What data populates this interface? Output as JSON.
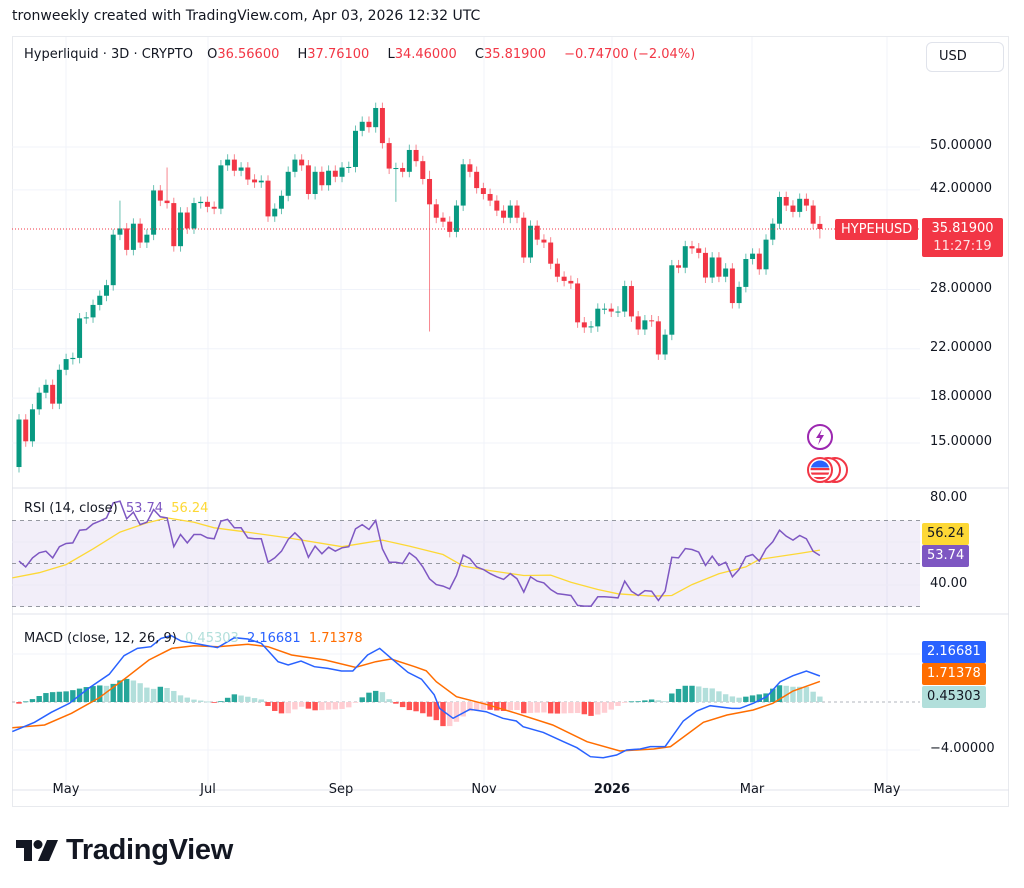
{
  "attribution": "tronweekly created with TradingView.com, Apr 03, 2026 12:32 UTC",
  "legend": {
    "symbol": "Hyperliquid · 3D · CRYPTO",
    "open_label": "O",
    "open": "36.56600",
    "high_label": "H",
    "high": "37.76100",
    "low_label": "L",
    "low": "34.46000",
    "close_label": "C",
    "close": "35.81900",
    "change": "−0.74700 (−2.04%)"
  },
  "currency_button": "USD",
  "symbol_tag": "HYPEHUSD",
  "last_price": "35.81900",
  "countdown": "11:27:19",
  "rsi_legend": {
    "title": "RSI (14, close)",
    "rsi": "53.74",
    "ma": "56.24"
  },
  "macd_legend": {
    "title": "MACD (close, 12, 26, 9)",
    "histogram": "0.45303",
    "macd": "2.16681",
    "signal": "1.71378"
  },
  "logo": "TradingView",
  "icons": {
    "event_1": "lightning-icon",
    "event_2": "us-flag-icon"
  },
  "colors": {
    "up": "#089981",
    "down": "#f23645",
    "rsi": "#7e57c2",
    "rsi_ma": "#fdd835",
    "macd": "#2962ff",
    "signal": "#ff6d00",
    "hist_up_strong": "#26a69a",
    "hist_up_weak": "#b2dfdb",
    "hist_down_strong": "#ff5252",
    "hist_down_weak": "#ffcdd2"
  },
  "chart_data": [
    {
      "type": "candlestick",
      "scale": "log",
      "grid": true,
      "x_ticks": [
        "May",
        "Jul",
        "Sep",
        "Nov",
        "2026",
        "Mar",
        "May"
      ],
      "y_ticks": [
        50,
        42,
        28,
        22,
        18,
        15
      ],
      "y_tick_labels": [
        "50.00000",
        "42.00000",
        "28.00000",
        "22.00000",
        "18.00000",
        "15.00000"
      ],
      "first_open": 13.6,
      "closes": [
        16.5,
        15.1,
        17.2,
        18.4,
        19.0,
        17.6,
        20.2,
        21.1,
        21.2,
        24.9,
        25.0,
        26.3,
        27.3,
        28.5,
        35.0,
        35.9,
        32.9,
        36.6,
        33.9,
        35.0,
        41.9,
        40.2,
        39.8,
        33.4,
        38.3,
        35.9,
        39.8,
        40.0,
        39.2,
        38.9,
        46.4,
        47.5,
        45.4,
        46.0,
        43.8,
        43.3,
        43.6,
        37.7,
        38.9,
        41.0,
        45.2,
        47.5,
        46.4,
        41.3,
        45.2,
        42.8,
        45.4,
        44.3,
        46.0,
        46.1,
        53.4,
        55.4,
        54.2,
        58.6,
        50.8,
        45.8,
        45.9,
        45.2,
        49.4,
        47.2,
        43.9,
        39.6,
        37.5,
        36.9,
        35.4,
        39.4,
        46.6,
        45.2,
        42.3,
        41.3,
        40.2,
        38.6,
        37.5,
        39.4,
        37.5,
        31.9,
        36.3,
        34.3,
        33.9,
        31.1,
        29.5,
        29.0,
        28.7,
        24.5,
        24.0,
        24.1,
        25.9,
        25.9,
        25.6,
        25.6,
        28.4,
        25.1,
        23.8,
        24.7,
        24.6,
        21.5,
        23.3,
        30.9,
        30.6,
        33.4,
        33.1,
        32.5,
        29.4,
        31.9,
        29.5,
        30.5,
        26.5,
        28.3,
        31.7,
        32.4,
        30.4,
        34.3,
        36.6,
        40.8,
        39.4,
        38.4,
        40.5,
        39.4,
        36.6,
        35.819
      ],
      "wick_extremes": [
        {
          "bar": 16,
          "high": 40.2
        },
        {
          "bar": 23,
          "high": 46.0
        },
        {
          "bar": 57,
          "low": 40.0
        },
        {
          "bar": 62,
          "high": 45.4,
          "low": 23.6
        },
        {
          "bar": 120,
          "open": 36.566,
          "high": 37.761,
          "low": 34.46
        }
      ],
      "last_price": 35.819
    },
    {
      "type": "line",
      "title": "RSI (14, close)",
      "y_ticks": [
        80,
        40
      ],
      "y_tick_labels": [
        "80.00",
        "40.00"
      ],
      "bands": {
        "upper": 70,
        "middle": 50,
        "lower": 30
      },
      "rsi": [
        51.1,
        48.4,
        52.6,
        55,
        55.7,
        52.6,
        57.8,
        59.3,
        59.6,
        65.5,
        65.8,
        68.4,
        69.7,
        71.2,
        78.2,
        79,
        70.8,
        73.9,
        68.1,
        69.2,
        75.1,
        71.7,
        71.2,
        57.8,
        63.5,
        59.6,
        63.5,
        63.5,
        61.9,
        61.5,
        69.7,
        70.5,
        66.6,
        66.6,
        61.9,
        61.5,
        61.5,
        50.6,
        52.6,
        55.7,
        61.2,
        64.3,
        61.2,
        52.9,
        58.1,
        54.5,
        57.6,
        55.7,
        57.3,
        57.8,
        66.1,
        68.1,
        65.8,
        70,
        56.8,
        50.6,
        50.6,
        50,
        55,
        52.6,
        48.4,
        42.9,
        40.2,
        39.5,
        38.2,
        44.4,
        53.9,
        52.3,
        48.4,
        47.2,
        45.3,
        43.8,
        42.6,
        45.3,
        42.9,
        36.7,
        43.8,
        41.8,
        41,
        37.9,
        36,
        35.6,
        35.1,
        30.5,
        30.2,
        30.2,
        34.5,
        34.5,
        34.3,
        34,
        41.8,
        37.1,
        35.1,
        37.4,
        37.1,
        32.8,
        37.1,
        52.9,
        52.6,
        57,
        56.5,
        55.3,
        49.1,
        53.4,
        49.1,
        50.6,
        43.8,
        47.2,
        53.1,
        54.2,
        51.1,
        56.8,
        60.1,
        65.5,
        62.7,
        60.9,
        63,
        61.5,
        55.7,
        53.74
      ],
      "rsi_ma": [
        [
          0,
          43.3
        ],
        [
          4,
          45.7
        ],
        [
          8,
          49.5
        ],
        [
          12,
          56.8
        ],
        [
          16,
          64.6
        ],
        [
          20,
          68.9
        ],
        [
          23,
          71.2
        ],
        [
          27,
          69.2
        ],
        [
          30,
          66.6
        ],
        [
          34,
          65
        ],
        [
          41,
          61.9
        ],
        [
          49,
          57.8
        ],
        [
          55,
          60.9
        ],
        [
          59,
          58.1
        ],
        [
          64,
          54.2
        ],
        [
          67,
          48.8
        ],
        [
          71,
          46.7
        ],
        [
          76,
          44.4
        ],
        [
          80,
          44.6
        ],
        [
          83,
          41.3
        ],
        [
          87,
          37.9
        ],
        [
          90,
          35.9
        ],
        [
          95,
          34.8
        ],
        [
          98,
          35.1
        ],
        [
          101,
          40.2
        ],
        [
          105,
          45.2
        ],
        [
          109,
          48.4
        ],
        [
          111,
          51.9
        ],
        [
          117,
          54.7
        ],
        [
          120,
          56.24
        ]
      ]
    },
    {
      "type": "line+histogram",
      "title": "MACD (close, 12, 26, 9)",
      "y_ticks": [
        -4
      ],
      "y_tick_labels": [
        "−4.00000"
      ],
      "macd": [
        [
          0,
          -2.47
        ],
        [
          3.3,
          -1.69
        ],
        [
          5.8,
          -0.86
        ],
        [
          8.5,
          -0.11
        ],
        [
          11.2,
          1.08
        ],
        [
          14.4,
          2.31
        ],
        [
          16.6,
          3.86
        ],
        [
          18.6,
          4.47
        ],
        [
          20.6,
          4.61
        ],
        [
          22.1,
          5.3
        ],
        [
          23.6,
          5.53
        ],
        [
          25.1,
          5.08
        ],
        [
          27,
          4.89
        ],
        [
          30.5,
          4.53
        ],
        [
          33,
          5.36
        ],
        [
          35,
          5.25
        ],
        [
          37,
          4.89
        ],
        [
          39.5,
          3.36
        ],
        [
          41,
          3.08
        ],
        [
          42.9,
          3.42
        ],
        [
          44.9,
          2.94
        ],
        [
          46.9,
          2.8
        ],
        [
          48.9,
          2.58
        ],
        [
          50.6,
          2.58
        ],
        [
          52.8,
          3.92
        ],
        [
          54.6,
          4.47
        ],
        [
          56.3,
          3.64
        ],
        [
          58.8,
          2.47
        ],
        [
          60.8,
          1.9
        ],
        [
          62.7,
          0.6
        ],
        [
          63.5,
          -0.53
        ],
        [
          65.5,
          -1.36
        ],
        [
          68,
          -0.61
        ],
        [
          70.4,
          -0.81
        ],
        [
          72.9,
          -1.36
        ],
        [
          74.9,
          -1.58
        ],
        [
          75.9,
          -2.06
        ],
        [
          78.9,
          -2.53
        ],
        [
          81.9,
          -3.31
        ],
        [
          83.9,
          -3.81
        ],
        [
          85.9,
          -4.56
        ],
        [
          87.8,
          -4.64
        ],
        [
          89.8,
          -4.42
        ],
        [
          91.3,
          -4.0
        ],
        [
          93.3,
          -3.92
        ],
        [
          94.8,
          -3.72
        ],
        [
          97,
          -3.72
        ],
        [
          99.7,
          -1.58
        ],
        [
          101.7,
          -0.75
        ],
        [
          103.7,
          -0.31
        ],
        [
          106.9,
          -0.53
        ],
        [
          108.1,
          -0.53
        ],
        [
          110.1,
          -0.11
        ],
        [
          112.1,
          0.44
        ],
        [
          114.1,
          1.69
        ],
        [
          116,
          2.19
        ],
        [
          118,
          2.58
        ],
        [
          120,
          2.16681
        ]
      ],
      "signal": [
        [
          0,
          -2.14
        ],
        [
          4.8,
          -1.92
        ],
        [
          8.8,
          -0.94
        ],
        [
          12.8,
          0.31
        ],
        [
          16.8,
          1.97
        ],
        [
          20.3,
          3.5
        ],
        [
          23.7,
          4.47
        ],
        [
          27,
          4.69
        ],
        [
          30.5,
          4.61
        ],
        [
          35,
          4.81
        ],
        [
          38,
          4.61
        ],
        [
          41.5,
          3.92
        ],
        [
          46.5,
          3.5
        ],
        [
          51,
          2.89
        ],
        [
          54,
          3.36
        ],
        [
          56.3,
          3.58
        ],
        [
          59.8,
          2.94
        ],
        [
          61.5,
          2.6
        ],
        [
          63,
          1.69
        ],
        [
          66,
          0.44
        ],
        [
          70.4,
          -0.19
        ],
        [
          74.9,
          -0.94
        ],
        [
          80.3,
          -1.92
        ],
        [
          85.4,
          -3.31
        ],
        [
          90.3,
          -4.08
        ],
        [
          95.3,
          -3.92
        ],
        [
          97.8,
          -3.72
        ],
        [
          102.7,
          -1.69
        ],
        [
          106.2,
          -1.08
        ],
        [
          110.1,
          -0.67
        ],
        [
          113,
          -0.11
        ],
        [
          116,
          0.92
        ],
        [
          120,
          1.71378
        ]
      ],
      "histogram_last": 0.45303
    }
  ]
}
